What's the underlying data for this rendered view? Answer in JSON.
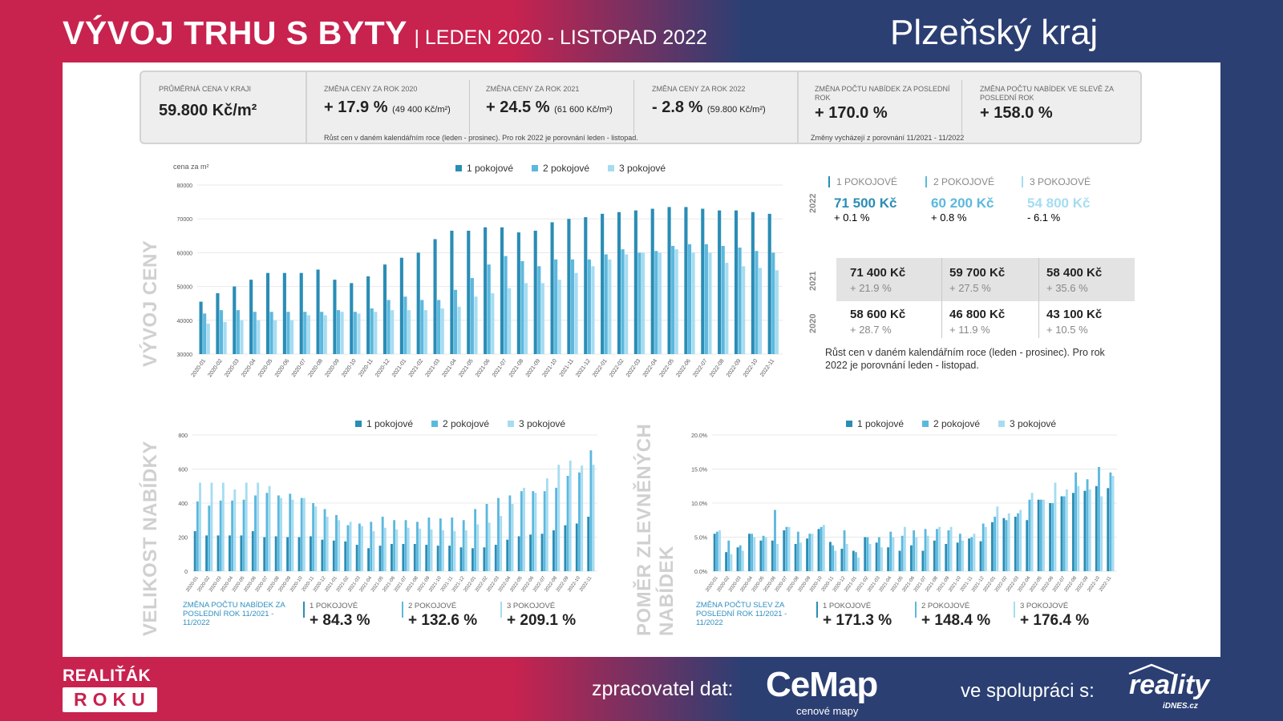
{
  "header": {
    "title": "VÝVOJ TRHU S BYTY",
    "subtitle": "| LEDEN 2020 - LISTOPAD 2022",
    "region": "Plzeňský kraj"
  },
  "kpis": [
    {
      "label": "PRŮMĚRNÁ CENA V KRAJI",
      "value": "59.800 Kč/m²",
      "note": ""
    },
    {
      "label": "ZMĚNA CENY ZA ROK 2020",
      "value": "+ 17.9 %",
      "note": "(49 400 Kč/m²)"
    },
    {
      "label": "ZMĚNA CENY ZA ROK 2021",
      "value": "+ 24.5 %",
      "note": "(61 600 Kč/m²)"
    },
    {
      "label": "ZMĚNA CENY ZA ROK 2022",
      "value": "- 2.8 %",
      "note": "(59.800 Kč/m²)"
    },
    {
      "label": "ZMĚNA POČTU NABÍDEK ZA POSLEDNÍ ROK",
      "value": "+ 170.0 %",
      "note": ""
    },
    {
      "label": "ZMĚNA POČTU NABÍDEK VE SLEVĚ ZA POSLEDNÍ ROK",
      "value": "+ 158.0 %",
      "note": ""
    }
  ],
  "kpi_note_prices": "Růst cen v daném kalendářním roce (leden - prosinec). Pro rok 2022 je porovnání leden - listopad.",
  "kpi_note_offers": "Změny vycházejí z porovnání 11/2021 - 11/2022",
  "colors": {
    "c1": "#2a8db5",
    "c2": "#5cb8de",
    "c3": "#a6dcf1",
    "brand_red": "#c8224f",
    "brand_blue": "#2b3f73"
  },
  "section_labels": {
    "price": "VÝVOJ CENY",
    "supply": "VELIKOST NABÍDKY",
    "discount_a": "POMĚR ZLEVNĚNÝCH",
    "discount_b": "NABÍDEK"
  },
  "price_stats": {
    "y2022": {
      "year": "2022",
      "cols": [
        {
          "head": "1 POKOJOVÉ",
          "price": "71 500 Kč",
          "change": "+ 0.1 %"
        },
        {
          "head": "2 POKOJOVÉ",
          "price": "60 200 Kč",
          "change": "+ 0.8 %"
        },
        {
          "head": "3 POKOJOVÉ",
          "price": "54 800 Kč",
          "change": "- 6.1 %"
        }
      ]
    },
    "y2021": {
      "year": "2021",
      "cols": [
        {
          "price": "71 400 Kč",
          "change": "+ 21.9 %"
        },
        {
          "price": "59 700 Kč",
          "change": "+ 27.5 %"
        },
        {
          "price": "58 400 Kč",
          "change": "+ 35.6 %"
        }
      ]
    },
    "y2020": {
      "year": "2020",
      "cols": [
        {
          "price": "58 600 Kč",
          "change": "+ 28.7 %"
        },
        {
          "price": "46 800 Kč",
          "change": "+ 11.9 %"
        },
        {
          "price": "43 100 Kč",
          "change": "+ 10.5 %"
        }
      ]
    },
    "note": "Růst cen v daném kalendářním roce (leden - prosinec). Pro rok 2022 je porovnání leden - listopad."
  },
  "supply_footer": {
    "head": "ZMĚNA POČTU NABÍDEK ZA POSLEDNÍ ROK 11/2021 - 11/2022",
    "items": [
      {
        "label": "1 POKOJOVÉ",
        "value": "+ 84.3 %"
      },
      {
        "label": "2 POKOJOVÉ",
        "value": "+ 132.6 %"
      },
      {
        "label": "3 POKOJOVÉ",
        "value": "+ 209.1 %"
      }
    ]
  },
  "discount_footer": {
    "head": "ZMĚNA POČTU SLEV ZA POSLEDNÍ ROK 11/2021 - 11/2022",
    "items": [
      {
        "label": "1 POKOJOVÉ",
        "value": "+ 171.3 %"
      },
      {
        "label": "2 POKOJOVÉ",
        "value": "+ 148.4 %"
      },
      {
        "label": "3 POKOJOVÉ",
        "value": "+ 176.4 %"
      }
    ]
  },
  "footer": {
    "brand_top": "REALIŤÁK",
    "brand_bottom": "ROKU",
    "processor_label": "zpracovatel dat:",
    "cemap": "CeMap",
    "cemap_sub": "cenové mapy",
    "coop_label": "ve spolupráci s:",
    "reality": "reality",
    "reality_sub": "iDNES.cz"
  },
  "chart_data": [
    {
      "type": "bar",
      "ylabel": "cena za m²",
      "ylim": [
        30000,
        80000
      ],
      "yticks": [
        30000,
        40000,
        50000,
        60000,
        70000,
        80000
      ],
      "legend": [
        "1 pokojové",
        "2 pokojové",
        "3 pokojové"
      ],
      "categories": [
        "2020-01",
        "2020-02",
        "2020-03",
        "2020-04",
        "2020-05",
        "2020-06",
        "2020-07",
        "2020-08",
        "2020-09",
        "2020-10",
        "2020-11",
        "2020-12",
        "2021-01",
        "2021-02",
        "2021-03",
        "2021-04",
        "2021-05",
        "2021-06",
        "2021-07",
        "2021-08",
        "2021-09",
        "2021-10",
        "2021-11",
        "2021-12",
        "2022-01",
        "2022-02",
        "2022-03",
        "2022-04",
        "2022-05",
        "2022-06",
        "2022-07",
        "2022-08",
        "2022-09",
        "2022-10",
        "2022-11"
      ],
      "series": [
        {
          "name": "1 pokojové",
          "values": [
            45500,
            48000,
            50000,
            52000,
            54000,
            54000,
            54000,
            55000,
            52000,
            51000,
            53000,
            56500,
            58500,
            60000,
            64000,
            66500,
            66500,
            67500,
            67500,
            66000,
            66500,
            69000,
            70000,
            70500,
            71500,
            72000,
            72500,
            73000,
            73500,
            73500,
            73000,
            72500,
            72500,
            72000,
            71500
          ]
        },
        {
          "name": "2 pokojové",
          "values": [
            42000,
            43000,
            43000,
            42500,
            42500,
            42500,
            42500,
            42500,
            43000,
            42500,
            43500,
            46000,
            47000,
            46000,
            46000,
            49000,
            52500,
            56500,
            59000,
            57500,
            56000,
            58000,
            58000,
            58000,
            59500,
            61000,
            60000,
            60500,
            62000,
            62500,
            62500,
            62000,
            61500,
            60500,
            60000
          ]
        },
        {
          "name": "3 pokojové",
          "values": [
            39000,
            39500,
            40000,
            40000,
            40000,
            40000,
            41500,
            41500,
            42500,
            42000,
            42500,
            43000,
            43000,
            43000,
            43500,
            44000,
            47000,
            48000,
            49500,
            51000,
            51000,
            52000,
            54000,
            56000,
            58000,
            59500,
            60000,
            60000,
            61000,
            60000,
            60000,
            57000,
            56000,
            55500,
            54800
          ]
        }
      ]
    },
    {
      "type": "bar",
      "ylim": [
        0,
        800
      ],
      "yticks": [
        0,
        200,
        400,
        600,
        800
      ],
      "legend": [
        "1 pokojové",
        "2 pokojové",
        "3 pokojové"
      ],
      "categories": [
        "2020-01",
        "2020-02",
        "2020-03",
        "2020-04",
        "2020-05",
        "2020-06",
        "2020-07",
        "2020-08",
        "2020-09",
        "2020-10",
        "2020-11",
        "2020-12",
        "2021-01",
        "2021-02",
        "2021-03",
        "2021-04",
        "2021-05",
        "2021-06",
        "2021-07",
        "2021-08",
        "2021-09",
        "2021-10",
        "2021-11",
        "2021-12",
        "2022-01",
        "2022-02",
        "2022-03",
        "2022-04",
        "2022-05",
        "2022-06",
        "2022-07",
        "2022-08",
        "2022-09",
        "2022-10",
        "2022-11"
      ],
      "series": [
        {
          "name": "1 pokojové",
          "values": [
            235,
            210,
            210,
            210,
            210,
            235,
            200,
            205,
            200,
            200,
            205,
            185,
            180,
            175,
            155,
            135,
            150,
            160,
            160,
            160,
            155,
            150,
            150,
            140,
            135,
            140,
            155,
            185,
            205,
            215,
            220,
            240,
            270,
            280,
            320
          ]
        },
        {
          "name": "2 pokojové",
          "values": [
            410,
            385,
            415,
            415,
            420,
            445,
            460,
            445,
            455,
            430,
            400,
            365,
            330,
            270,
            280,
            290,
            320,
            300,
            300,
            290,
            315,
            310,
            315,
            300,
            365,
            395,
            430,
            445,
            470,
            470,
            470,
            490,
            560,
            580,
            710
          ]
        },
        {
          "name": "3 pokojové",
          "values": [
            520,
            520,
            520,
            480,
            520,
            520,
            500,
            430,
            420,
            430,
            380,
            320,
            300,
            290,
            265,
            235,
            255,
            245,
            255,
            250,
            245,
            240,
            235,
            240,
            275,
            285,
            325,
            395,
            490,
            460,
            545,
            625,
            650,
            620,
            625
          ]
        }
      ]
    },
    {
      "type": "bar",
      "ylim": [
        0,
        20
      ],
      "yticks": [
        0,
        5,
        10,
        15,
        20
      ],
      "y_unit": "%",
      "legend": [
        "1 pokojové",
        "2 pokojové",
        "3 pokojové"
      ],
      "categories": [
        "2020-01",
        "2020-02",
        "2020-03",
        "2020-04",
        "2020-05",
        "2020-06",
        "2020-07",
        "2020-08",
        "2020-09",
        "2020-10",
        "2020-11",
        "2020-12",
        "2021-01",
        "2021-02",
        "2021-03",
        "2021-04",
        "2021-05",
        "2021-06",
        "2021-07",
        "2021-08",
        "2021-09",
        "2021-10",
        "2021-11",
        "2021-12",
        "2022-01",
        "2022-02",
        "2022-03",
        "2022-04",
        "2022-05",
        "2022-06",
        "2022-07",
        "2022-08",
        "2022-09",
        "2022-10",
        "2022-11"
      ],
      "series": [
        {
          "name": "1 pokojové",
          "values": [
            5.5,
            2.8,
            3.5,
            5.5,
            4.5,
            4.5,
            6.0,
            4.0,
            4.8,
            6.2,
            4.3,
            3.3,
            3.0,
            5.0,
            4.2,
            3.5,
            3.0,
            3.8,
            3.0,
            4.5,
            4.0,
            4.2,
            4.8,
            4.4,
            7.2,
            7.8,
            8.0,
            7.5,
            10.5,
            10.0,
            11.0,
            11.5,
            11.8,
            12.5,
            12.2
          ]
        },
        {
          "name": "2 pokojové",
          "values": [
            5.8,
            4.5,
            3.8,
            5.5,
            5.2,
            9.0,
            6.5,
            5.8,
            5.5,
            6.5,
            3.8,
            6.0,
            2.8,
            5.0,
            5.0,
            5.8,
            5.2,
            6.0,
            6.2,
            6.2,
            6.0,
            5.5,
            5.0,
            7.0,
            8.0,
            7.5,
            8.5,
            10.5,
            10.5,
            10.0,
            11.0,
            14.5,
            13.5,
            15.3,
            14.5
          ]
        },
        {
          "name": "3 pokojové",
          "values": [
            6.0,
            2.5,
            3.0,
            5.0,
            5.0,
            4.0,
            6.5,
            4.2,
            5.5,
            6.8,
            3.0,
            4.0,
            2.0,
            4.0,
            3.5,
            5.0,
            6.5,
            5.0,
            5.2,
            6.5,
            6.5,
            4.5,
            5.5,
            6.5,
            9.5,
            8.5,
            9.0,
            11.5,
            10.5,
            13.0,
            12.0,
            12.5,
            12.0,
            11.0,
            14.0
          ]
        }
      ]
    }
  ]
}
